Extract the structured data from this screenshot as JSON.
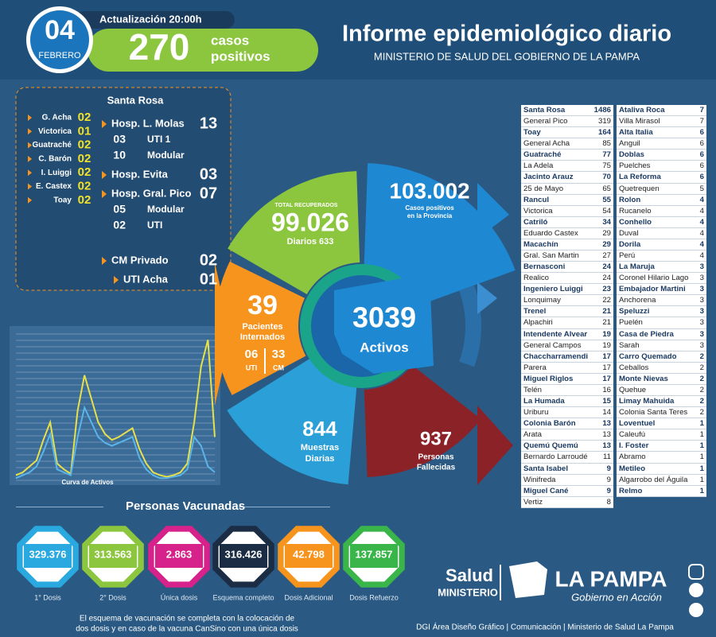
{
  "header": {
    "day": "04",
    "month": "FEBRERO",
    "update": "Actualización 20:00h",
    "cases": "270",
    "cases_label": [
      "casos",
      "positivos"
    ],
    "title": "Informe epidemiológico diario",
    "subtitle": "MINISTERIO DE SALUD DEL GOBIERNO DE LA PAMPA"
  },
  "santa_rosa_panel": {
    "title": "Santa Rosa",
    "localities": [
      {
        "name": "G. Acha",
        "value": "02"
      },
      {
        "name": "Victorica",
        "value": "01"
      },
      {
        "name": "Guatraché",
        "value": "02"
      },
      {
        "name": "C. Barón",
        "value": "02"
      },
      {
        "name": "I. Luiggi",
        "value": "02"
      },
      {
        "name": "E. Castex",
        "value": "02"
      },
      {
        "name": "Toay",
        "value": "02"
      }
    ],
    "hospitals": [
      {
        "name": "Hosp. L. Molas",
        "value": "13",
        "sub": [
          {
            "value": "03",
            "label": "UTI 1"
          },
          {
            "value": "10",
            "label": "Modular"
          }
        ]
      },
      {
        "name": "Hosp. Evita",
        "value": "03",
        "sub": []
      },
      {
        "name": "Hosp. Gral. Pico",
        "value": "07",
        "sub": [
          {
            "value": "05",
            "label": "Modular"
          },
          {
            "value": "02",
            "label": "UTI"
          }
        ]
      },
      {
        "name": "CM Privado",
        "value": "02",
        "sub": []
      },
      {
        "name": "UTI Acha",
        "value": "01",
        "sub": []
      }
    ]
  },
  "chart_data": {
    "type": "line",
    "label": "Curva de Activos",
    "ylim": [
      0,
      100
    ],
    "series": [
      {
        "color": "#e8e04a",
        "values": [
          4,
          6,
          10,
          14,
          28,
          40,
          12,
          8,
          5,
          48,
          72,
          56,
          40,
          32,
          28,
          30,
          33,
          36,
          22,
          12,
          6,
          4,
          3,
          4,
          6,
          12,
          40,
          78,
          96,
          30
        ]
      },
      {
        "color": "#5ab4e8",
        "values": [
          2,
          4,
          6,
          10,
          20,
          32,
          8,
          6,
          4,
          30,
          50,
          40,
          30,
          26,
          24,
          26,
          28,
          30,
          16,
          8,
          4,
          2,
          2,
          3,
          4,
          8,
          30,
          24,
          10,
          6
        ]
      }
    ]
  },
  "wheel": {
    "recovered": {
      "label": "TOTAL RECUPERADOS",
      "value": "99.026",
      "daily": "Diarios 633"
    },
    "total": {
      "value": "103.002",
      "label": [
        "Casos positivos",
        "en la Provincia"
      ]
    },
    "hospitalized": {
      "value": "39",
      "label": [
        "Pacientes",
        "Internados"
      ],
      "uti": "06",
      "uti_label": "UTI",
      "cm": "33",
      "cm_label": "CM"
    },
    "active": {
      "value": "3039",
      "label": "Activos"
    },
    "samples": {
      "value": "844",
      "label": [
        "Muestras",
        "Diarias"
      ]
    },
    "deaths": {
      "value": "937",
      "label": [
        "Personas",
        "Fallecidas"
      ]
    }
  },
  "table": {
    "left": [
      [
        "Santa Rosa",
        "1486"
      ],
      [
        "General Pico",
        "319"
      ],
      [
        "Toay",
        "164"
      ],
      [
        "General Acha",
        "85"
      ],
      [
        "Guatraché",
        "77"
      ],
      [
        "La Adela",
        "75"
      ],
      [
        "Jacinto Arauz",
        "70"
      ],
      [
        "25 de Mayo",
        "65"
      ],
      [
        "Rancul",
        "55"
      ],
      [
        "Victorica",
        "54"
      ],
      [
        "Catriló",
        "34"
      ],
      [
        "Eduardo Castex",
        "29"
      ],
      [
        "Macachín",
        "29"
      ],
      [
        "Gral. San Martin",
        "27"
      ],
      [
        "Bernasconi",
        "24"
      ],
      [
        "Realico",
        "24"
      ],
      [
        "Ingeniero Luiggi",
        "23"
      ],
      [
        "Lonquimay",
        "22"
      ],
      [
        "Trenel",
        "21"
      ],
      [
        "Alpachiri",
        "21"
      ],
      [
        "Intendente Alvear",
        "19"
      ],
      [
        "General Campos",
        "19"
      ],
      [
        "Chaccharramendi",
        "17"
      ],
      [
        "Parera",
        "17"
      ],
      [
        "Miguel Riglos",
        "17"
      ],
      [
        "Telén",
        "16"
      ],
      [
        "La Humada",
        "15"
      ],
      [
        "Uriburu",
        "14"
      ],
      [
        "Colonia Barón",
        "13"
      ],
      [
        "Arata",
        "13"
      ],
      [
        "Quemú Quemú",
        "13"
      ],
      [
        "Bernardo Larroudé",
        "11"
      ],
      [
        "Santa Isabel",
        "9"
      ],
      [
        "Winifreda",
        "9"
      ],
      [
        "Miguel Cané",
        "9"
      ],
      [
        "Vertiz",
        "8"
      ]
    ],
    "right": [
      [
        "Ataliva Roca",
        "7"
      ],
      [
        "Villa Mirasol",
        "7"
      ],
      [
        "Alta Italia",
        "6"
      ],
      [
        "Anguil",
        "6"
      ],
      [
        "Doblas",
        "6"
      ],
      [
        "Puelches",
        "6"
      ],
      [
        "La Reforma",
        "6"
      ],
      [
        "Quetrequen",
        "5"
      ],
      [
        "Rolon",
        "4"
      ],
      [
        "Rucanelo",
        "4"
      ],
      [
        "Conhello",
        "4"
      ],
      [
        "Duval",
        "4"
      ],
      [
        "Dorila",
        "4"
      ],
      [
        "Perú",
        "4"
      ],
      [
        "La Maruja",
        "3"
      ],
      [
        "Coronel Hilario Lago",
        "3"
      ],
      [
        "Embajador Martini",
        "3"
      ],
      [
        "Anchorena",
        "3"
      ],
      [
        "Speluzzi",
        "3"
      ],
      [
        "Puelén",
        "3"
      ],
      [
        "Casa de Piedra",
        "3"
      ],
      [
        "Sarah",
        "3"
      ],
      [
        "Carro Quemado",
        "2"
      ],
      [
        "Ceballos",
        "2"
      ],
      [
        "Monte Nievas",
        "2"
      ],
      [
        "Quehue",
        "2"
      ],
      [
        "Limay Mahuida",
        "2"
      ],
      [
        "Colonia Santa Teres",
        "2"
      ],
      [
        "Loventuel",
        "1"
      ],
      [
        "Caleufú",
        "1"
      ],
      [
        "I. Foster",
        "1"
      ],
      [
        "Abramo",
        "1"
      ],
      [
        "Metileo",
        "1"
      ],
      [
        "Algarrobo del Águila",
        "1"
      ],
      [
        "Relmo",
        "1"
      ]
    ]
  },
  "vaccines": {
    "title": "Personas Vacunadas",
    "items": [
      {
        "value": "329.376",
        "label": "1° Dosis",
        "color": "#29a9e0"
      },
      {
        "value": "313.563",
        "label": "2° Dosis",
        "color": "#8cc63f"
      },
      {
        "value": "2.863",
        "label": "Única dosis",
        "color": "#d6228a"
      },
      {
        "value": "316.426",
        "label": "Esquema completo",
        "color": "#1b2d45"
      },
      {
        "value": "42.798",
        "label": "Dosis Adicional",
        "color": "#f7941d"
      },
      {
        "value": "137.857",
        "label": "Dosis Refuerzo",
        "color": "#39b54a"
      }
    ],
    "note": [
      "El esquema de vacunación se completa con la colocación de",
      "dos dosis y en caso de la vacuna CanSino con una única dosis"
    ]
  },
  "footer": {
    "salud": "Salud",
    "ministerio": "MINISTERIO",
    "brand": "LA PAMPA",
    "slogan": "Gobierno en Acción",
    "credits": "DGI Área Diseño Gráfico  |  Comunicación  |  Ministerio de Salud La Pampa"
  }
}
